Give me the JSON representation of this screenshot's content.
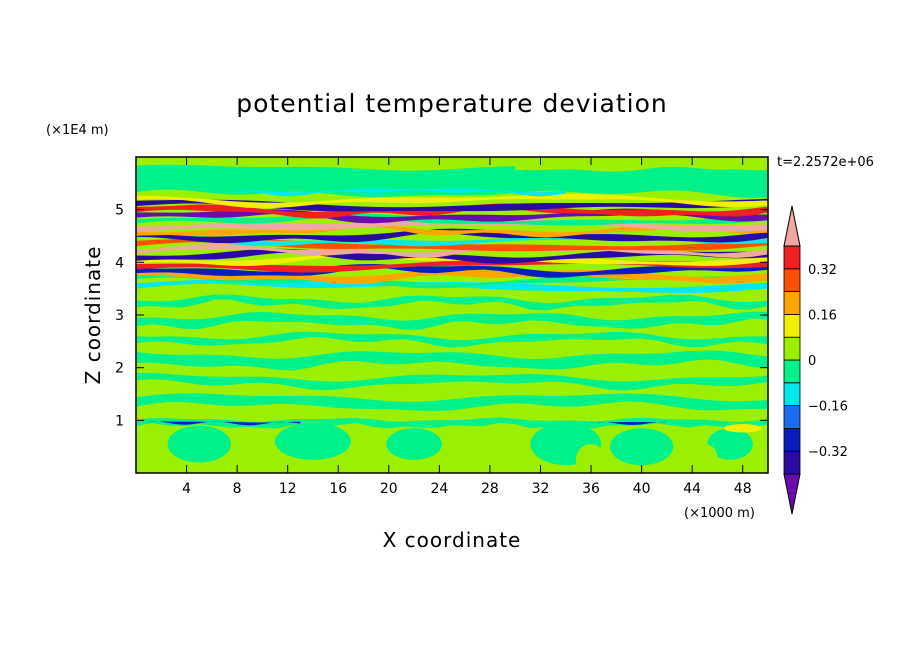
{
  "chart_data": {
    "type": "heatmap",
    "title": "potential temperature deviation",
    "time_label": "t=2.2572e+06",
    "xlabel": "X coordinate",
    "ylabel": "Z coordinate",
    "x_unit": "(×1000 m)",
    "y_unit": "(×1E4 m)",
    "xlim": [
      0,
      50
    ],
    "ylim": [
      0,
      6
    ],
    "x_ticks": [
      4,
      8,
      12,
      16,
      20,
      24,
      28,
      32,
      36,
      40,
      44,
      48
    ],
    "y_ticks": [
      1,
      2,
      3,
      4,
      5
    ],
    "colorbar": {
      "levels": [
        -0.4,
        -0.32,
        -0.24,
        -0.16,
        -0.08,
        0,
        0.08,
        0.16,
        0.24,
        0.32,
        0.4
      ],
      "labels": [
        "-0.32",
        "-0.16",
        "0",
        "0.16",
        "0.32"
      ],
      "label_values": [
        -0.32,
        -0.16,
        0,
        0.16,
        0.32
      ],
      "colors": [
        "#6a0dad",
        "#2a0aa0",
        "#0a1ebe",
        "#1a6cf0",
        "#00e8f0",
        "#00f08a",
        "#9af000",
        "#f0f000",
        "#ffa500",
        "#ff5000",
        "#f02020",
        "#f0a8a0"
      ],
      "extend": "both"
    },
    "bands": [
      {
        "z": [
          0.0,
          1.0
        ],
        "dominant": "#9af000",
        "mixed": [
          "#00f08a"
        ]
      },
      {
        "z": [
          1.0,
          3.5
        ],
        "dominant": "#9af000",
        "mixed": [
          "#00f08a"
        ]
      },
      {
        "z": [
          3.5,
          5.2
        ],
        "dominant": "#0a1ebe",
        "mixed": [
          "#f0a8a0",
          "#f02020",
          "#ffa500",
          "#f0f000",
          "#2a0aa0",
          "#6a0dad",
          "#00e8f0"
        ]
      },
      {
        "z": [
          5.2,
          6.0
        ],
        "dominant": "#00f08a",
        "mixed": [
          "#9af000",
          "#00e8f0",
          "#f0f000"
        ]
      }
    ]
  }
}
